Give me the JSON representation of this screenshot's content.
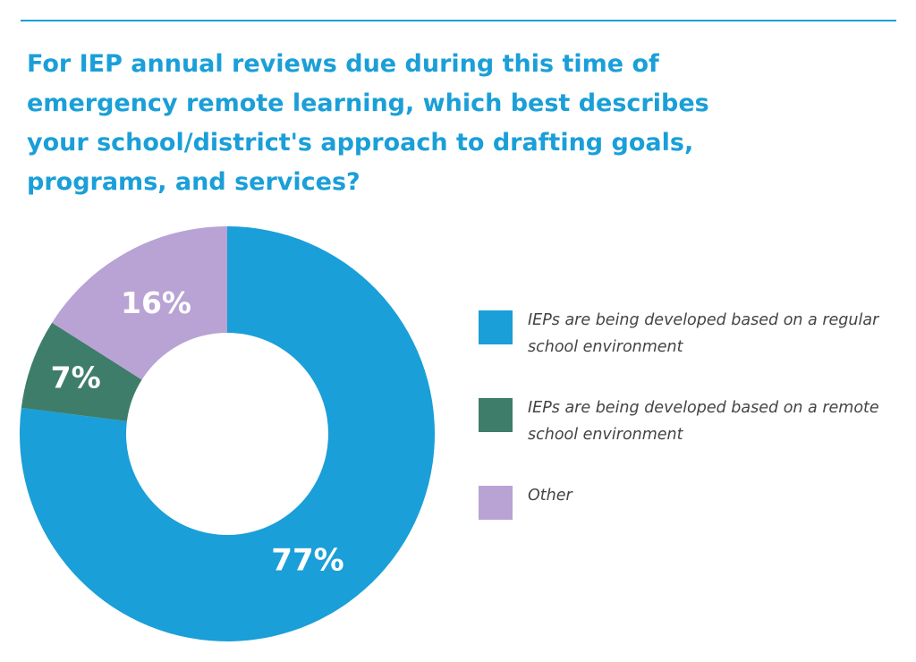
{
  "title": "For IEP annual reviews due during this time of emergency remote learning, which best describes your school/district's approach to drafting goals, programs, and services?",
  "chart_data": {
    "type": "pie",
    "donut": true,
    "title": "For IEP annual reviews due during this time of emergency remote learning, which best describes your school/district's approach to drafting goals, programs, and services?",
    "slices": [
      {
        "label": "IEPs are being developed based on a regular school environment",
        "value": 77,
        "display": "77%",
        "color": "#1a9fd8"
      },
      {
        "label": "IEPs are being developed based on a remote school environment",
        "value": 7,
        "display": "7%",
        "color": "#3e7d6a"
      },
      {
        "label": "Other",
        "value": 16,
        "display": "16%",
        "color": "#b8a3d4"
      }
    ],
    "legend_position": "right"
  },
  "colors": {
    "accent": "#1a9fd8",
    "regular": "#1a9fd8",
    "remote": "#3e7d6a",
    "other": "#b8a3d4"
  }
}
